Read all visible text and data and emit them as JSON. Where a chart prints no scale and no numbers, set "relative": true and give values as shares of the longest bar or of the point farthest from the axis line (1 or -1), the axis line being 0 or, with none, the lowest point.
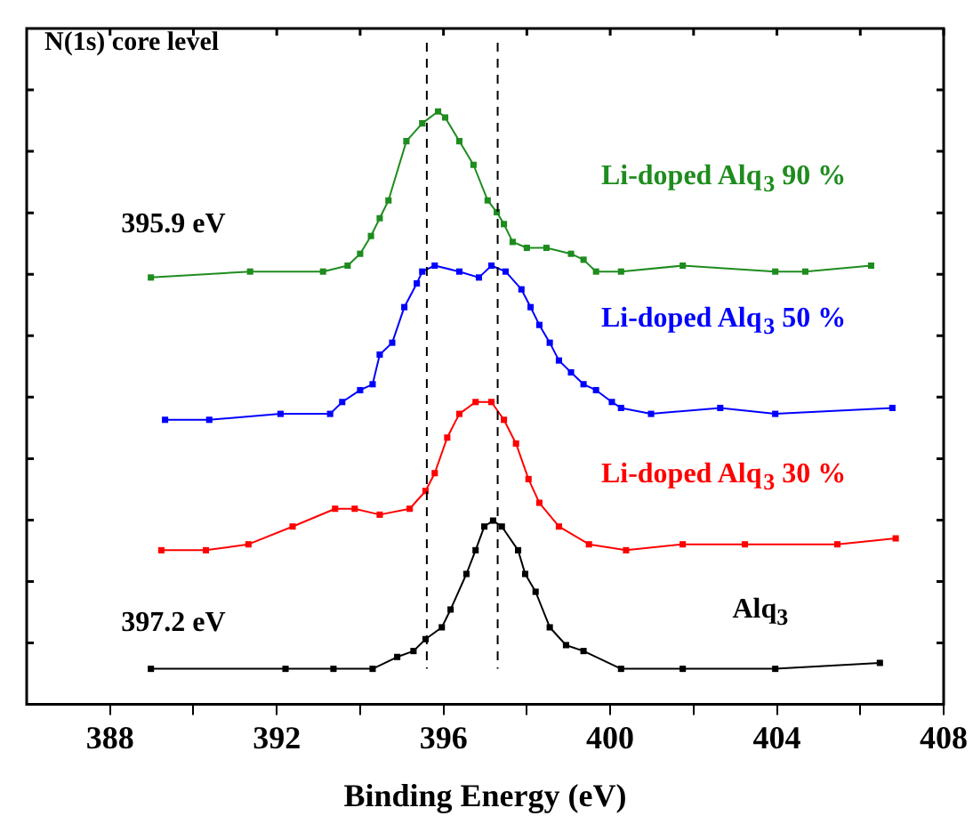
{
  "chart_data": {
    "type": "line",
    "title": "N(1s) core level",
    "xlabel": "Binding Energy (eV)",
    "relative": true,
    "marker": "square",
    "line_style": "solid",
    "grid": false,
    "legend": false,
    "tick_labels": "x",
    "xlim": [
      386,
      408
    ],
    "xticks": [
      388,
      {
        "value": 390,
        "label": null
      },
      392,
      {
        "value": 394,
        "label": null
      },
      396,
      {
        "value": 398,
        "label": null
      },
      400,
      {
        "value": 402,
        "label": null
      },
      404,
      {
        "value": 406,
        "label": null
      },
      408
    ],
    "ref_lines": [
      {
        "axis": "x",
        "value": 395.6,
        "color": "#000000",
        "line_style": "dashed"
      },
      {
        "axis": "x",
        "value": 397.3,
        "color": "#000000",
        "line_style": "dashed"
      }
    ],
    "annotations": [
      "395.9 eV",
      "397.2 eV"
    ],
    "series": [
      {
        "name": "Li-doped Alq$_{3}$ 90 %",
        "color": "#1e8c1e",
        "x": [
          388.98,
          391.36,
          393.11,
          393.7,
          394.0,
          394.26,
          394.47,
          394.68,
          395.11,
          395.49,
          395.87,
          396.04,
          396.38,
          396.72,
          397.06,
          397.28,
          397.45,
          397.66,
          398.0,
          398.47,
          399.06,
          399.36,
          399.66,
          400.26,
          401.74,
          403.96,
          404.68,
          406.26
        ],
        "values": [
          0.72,
          0.73,
          0.73,
          0.74,
          0.76,
          0.79,
          0.82,
          0.85,
          0.95,
          0.98,
          1.0,
          0.99,
          0.95,
          0.91,
          0.85,
          0.83,
          0.81,
          0.78,
          0.77,
          0.77,
          0.76,
          0.75,
          0.73,
          0.73,
          0.74,
          0.73,
          0.73,
          0.74
        ]
      },
      {
        "name": "Li-doped Alq$_{3}$ 50 %",
        "color": "#0000ff",
        "x": [
          389.32,
          390.38,
          392.09,
          393.28,
          393.57,
          394.0,
          394.3,
          394.47,
          394.77,
          395.06,
          395.36,
          395.49,
          395.79,
          396.38,
          396.85,
          397.15,
          397.49,
          397.87,
          398.09,
          398.3,
          398.55,
          398.77,
          399.06,
          399.36,
          399.66,
          400.04,
          400.26,
          400.98,
          402.64,
          403.96,
          406.77
        ],
        "values": [
          0.48,
          0.48,
          0.49,
          0.49,
          0.51,
          0.53,
          0.54,
          0.59,
          0.61,
          0.67,
          0.71,
          0.73,
          0.74,
          0.73,
          0.72,
          0.74,
          0.73,
          0.7,
          0.67,
          0.64,
          0.61,
          0.58,
          0.56,
          0.54,
          0.53,
          0.51,
          0.5,
          0.49,
          0.5,
          0.49,
          0.5
        ]
      },
      {
        "name": "Li-doped Alq$_{3}$ 30 %",
        "color": "#ff0000",
        "x": [
          389.23,
          390.3,
          391.32,
          392.38,
          393.4,
          393.87,
          394.47,
          395.19,
          395.57,
          395.79,
          396.09,
          396.38,
          396.77,
          397.15,
          397.45,
          397.74,
          398.04,
          398.3,
          398.77,
          399.49,
          400.38,
          401.74,
          403.23,
          405.45,
          406.85
        ],
        "values": [
          0.26,
          0.26,
          0.27,
          0.3,
          0.33,
          0.33,
          0.32,
          0.33,
          0.36,
          0.39,
          0.45,
          0.49,
          0.51,
          0.51,
          0.48,
          0.44,
          0.38,
          0.34,
          0.3,
          0.27,
          0.26,
          0.27,
          0.27,
          0.27,
          0.28
        ]
      },
      {
        "name": "Alq$_{3}$",
        "color": "#000000",
        "x": [
          388.98,
          392.21,
          393.36,
          394.3,
          394.89,
          395.28,
          395.57,
          395.96,
          396.17,
          396.55,
          396.77,
          396.98,
          397.19,
          397.4,
          397.79,
          397.96,
          398.21,
          398.55,
          398.94,
          399.36,
          400.26,
          401.74,
          403.96,
          406.47
        ],
        "values": [
          0.06,
          0.06,
          0.06,
          0.06,
          0.08,
          0.09,
          0.11,
          0.13,
          0.16,
          0.22,
          0.26,
          0.3,
          0.31,
          0.3,
          0.26,
          0.22,
          0.19,
          0.13,
          0.1,
          0.09,
          0.06,
          0.06,
          0.06,
          0.07
        ]
      }
    ]
  }
}
